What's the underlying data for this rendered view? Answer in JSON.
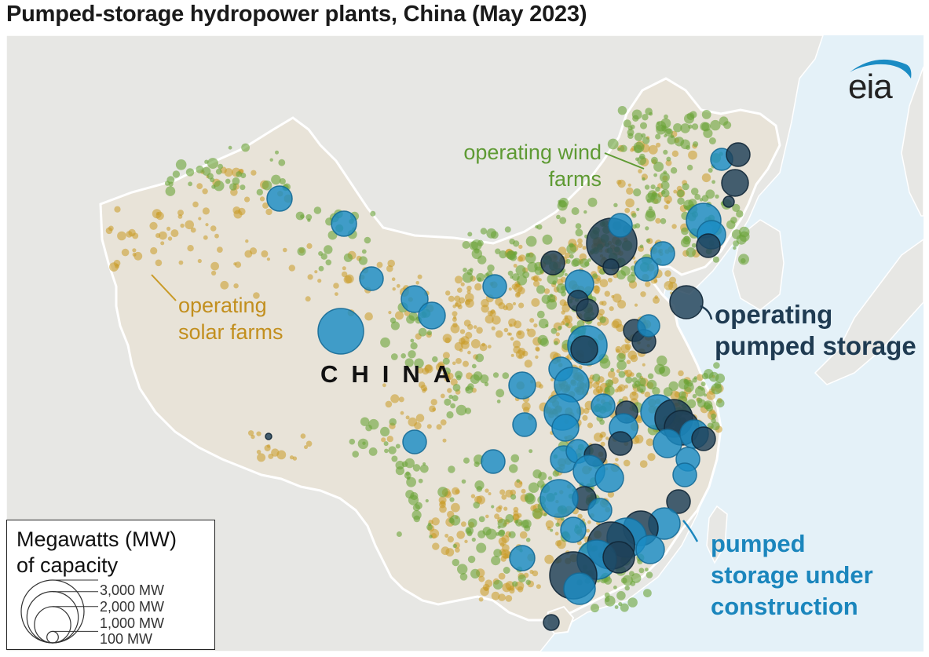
{
  "title": "Pumped-storage hydropower plants, China (May 2023)",
  "logo": {
    "text": "eia"
  },
  "colors": {
    "ocean": "#e4f1f8",
    "land_other": "#e7e7e4",
    "china_land": "#e8e3d8",
    "border": "#ffffff",
    "solar": "#c99a25",
    "wind": "#6ba338",
    "operating_pumped_storage": "#1e3f57",
    "pumped_storage_under_construction": "#1b8cc4"
  },
  "labels": {
    "operating_solar": [
      "operating",
      "solar farms"
    ],
    "operating_wind": [
      "operating wind",
      "farms"
    ],
    "country": "CHINA",
    "operating_pumped": [
      "operating",
      "pumped storage"
    ],
    "under_construction": [
      "pumped",
      "storage under",
      "construction"
    ]
  },
  "legend": {
    "title": [
      "Megawatts (MW)",
      "of capacity"
    ],
    "sizes": [
      {
        "label": "3,000 MW",
        "mw": 3000
      },
      {
        "label": "2,000 MW",
        "mw": 2000
      },
      {
        "label": "1,000 MW",
        "mw": 1000
      },
      {
        "label": "100 MW",
        "mw": 100
      }
    ]
  }
}
